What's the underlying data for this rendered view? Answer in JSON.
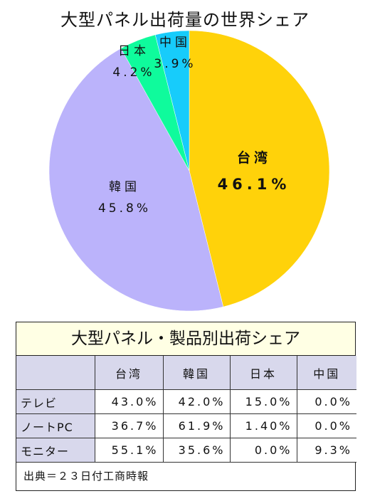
{
  "chart_data": [
    {
      "type": "pie",
      "title": "大型パネル出荷量の世界シェア",
      "slices": [
        {
          "label": "台湾",
          "value": 46.1,
          "value_text": "46.1%",
          "color": "#ffd20a"
        },
        {
          "label": "韓国",
          "value": 45.8,
          "value_text": "45.8%",
          "color": "#bbb3fb"
        },
        {
          "label": "日本",
          "value": 4.2,
          "value_text": "4.2%",
          "color": "#0ffb9c"
        },
        {
          "label": "中国",
          "value": 3.9,
          "value_text": "3.9%",
          "color": "#17ccfb"
        }
      ]
    },
    {
      "type": "table",
      "title": "大型パネル・製品別出荷シェア",
      "columns": [
        "台湾",
        "韓国",
        "日本",
        "中国"
      ],
      "rows": [
        {
          "label": "テレビ",
          "values": [
            "43.0%",
            "42.0%",
            "15.0%",
            "0.0%"
          ]
        },
        {
          "label": "ノートPC",
          "values": [
            "36.7%",
            "61.9%",
            "1.40%",
            "0.0%"
          ]
        },
        {
          "label": "モニター",
          "values": [
            "55.1%",
            "35.6%",
            "0.0%",
            "9.3%"
          ]
        }
      ],
      "source": "出典＝２３日付工商時報"
    }
  ]
}
